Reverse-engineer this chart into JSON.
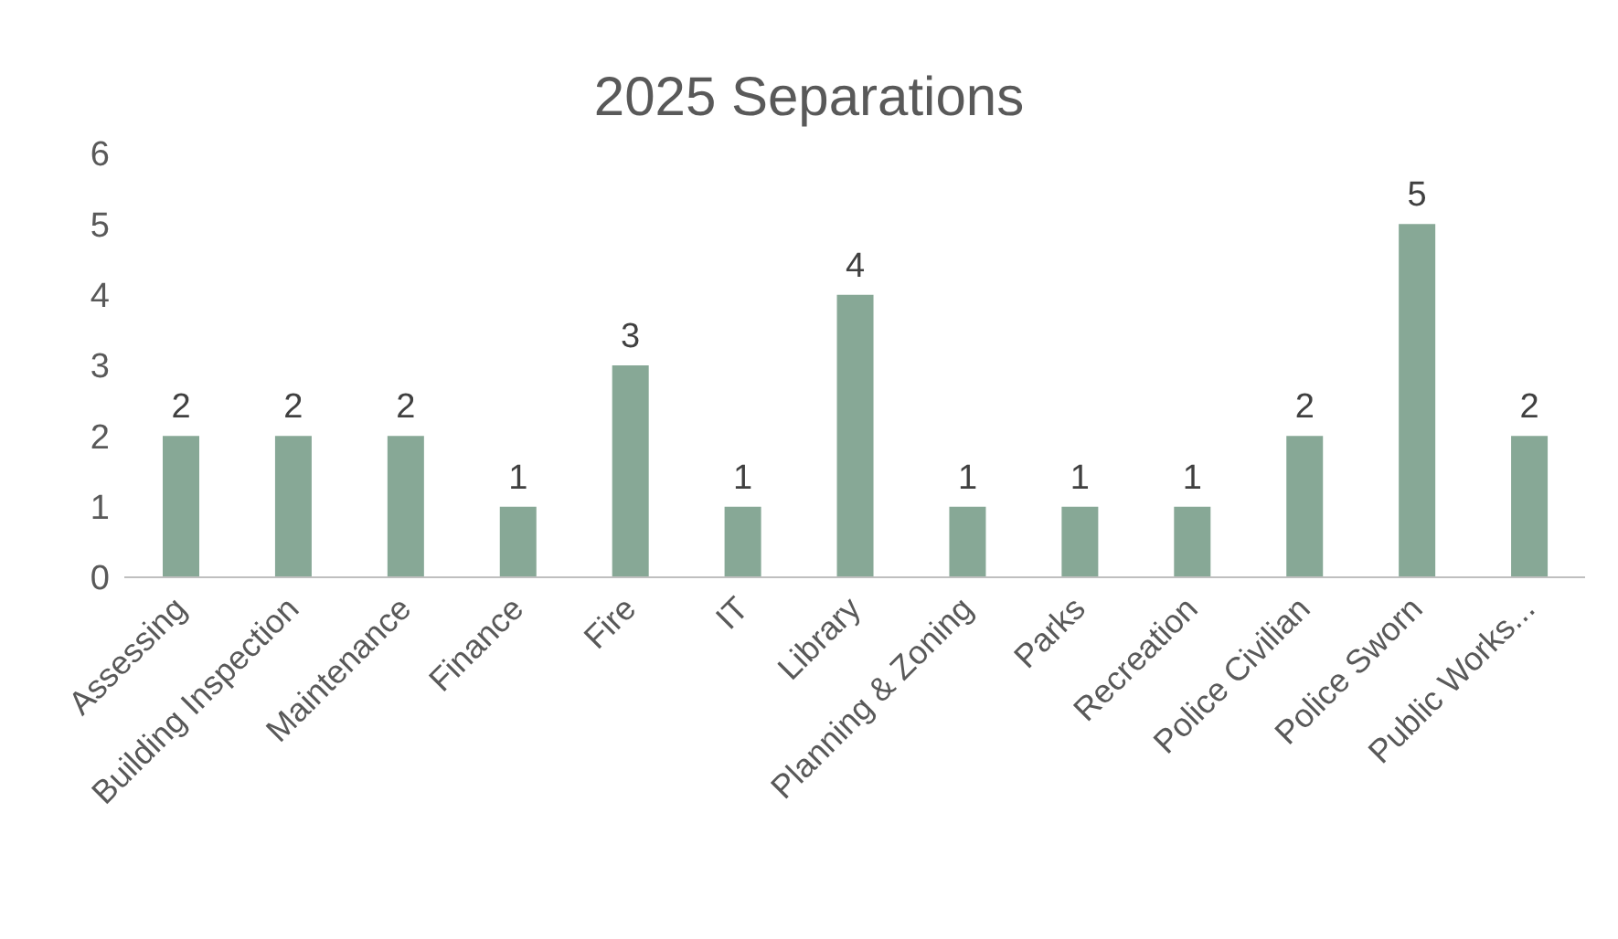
{
  "chart_data": {
    "type": "bar",
    "title": "2025 Separations",
    "categories": [
      "Assessing",
      "Building Inspection",
      "Maintenance",
      "Finance",
      "Fire",
      "IT",
      "Library",
      "Planning & Zoning",
      "Parks",
      "Recreation",
      "Police Civilian",
      "Police Sworn",
      "Public Works..."
    ],
    "values": [
      2,
      2,
      2,
      1,
      3,
      1,
      4,
      1,
      1,
      1,
      2,
      5,
      2
    ],
    "color": "#87a896",
    "ylim": [
      0,
      6
    ],
    "yticks": [
      0,
      1,
      2,
      3,
      4,
      5,
      6
    ],
    "data_labels": true,
    "grid": false,
    "legend": false
  }
}
